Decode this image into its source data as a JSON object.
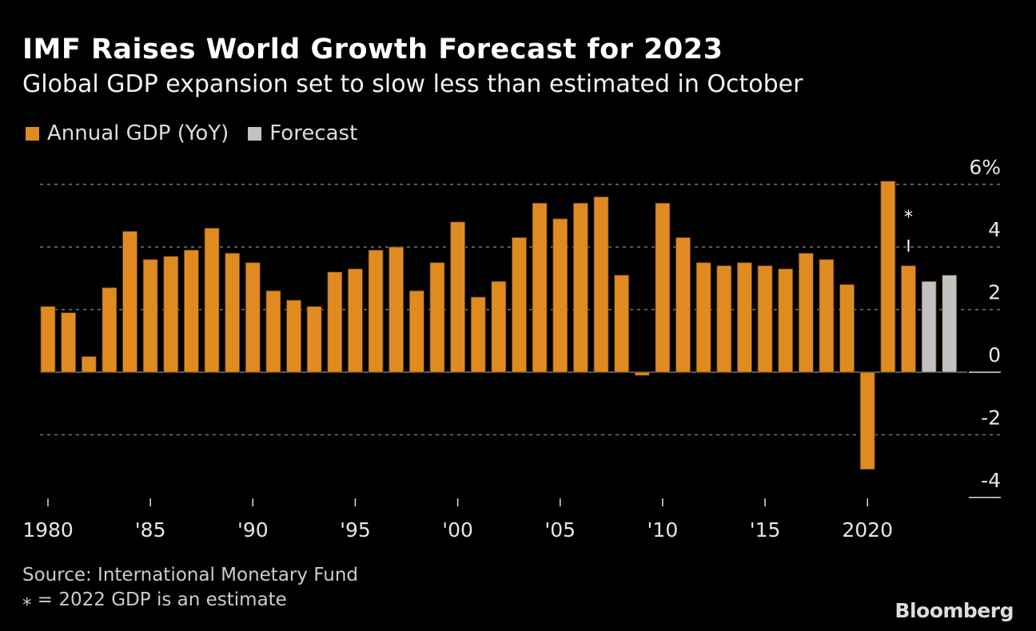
{
  "title": "IMF Raises World Growth Forecast for 2023",
  "subtitle": "Global GDP expansion set to slow less than estimated in October",
  "legend": [
    {
      "label": "Annual GDP (YoY)",
      "color": "#e08b22"
    },
    {
      "label": "Forecast",
      "color": "#c2c2c2"
    }
  ],
  "footer": {
    "source": "Source: International Monetary Fund",
    "note": "⁎ = 2022 GDP is an estimate",
    "brand": "Bloomberg"
  },
  "chart_data": {
    "type": "bar",
    "title": "IMF Raises World Growth Forecast for 2023",
    "xlabel": "",
    "ylabel": "%",
    "ylim": [
      -4,
      6
    ],
    "yticks": [
      6,
      4,
      2,
      0,
      -2,
      -4
    ],
    "ytick_labels": [
      "6%",
      "4",
      "2",
      "0",
      "-2",
      "-4"
    ],
    "xtick_years": [
      1980,
      1985,
      1990,
      1995,
      2000,
      2005,
      2010,
      2015,
      2020
    ],
    "xtick_labels": [
      "1980",
      "'85",
      "'90",
      "'95",
      "'00",
      "'05",
      "'10",
      "'15",
      "2020"
    ],
    "years": [
      1980,
      1981,
      1982,
      1983,
      1984,
      1985,
      1986,
      1987,
      1988,
      1989,
      1990,
      1991,
      1992,
      1993,
      1994,
      1995,
      1996,
      1997,
      1998,
      1999,
      2000,
      2001,
      2002,
      2003,
      2004,
      2005,
      2006,
      2007,
      2008,
      2009,
      2010,
      2011,
      2012,
      2013,
      2014,
      2015,
      2016,
      2017,
      2018,
      2019,
      2020,
      2021,
      2022,
      2023,
      2024
    ],
    "series": [
      {
        "name": "Annual GDP (YoY)",
        "color": "#e08b22",
        "values": [
          2.1,
          1.9,
          0.5,
          2.7,
          4.5,
          3.6,
          3.7,
          3.9,
          4.6,
          3.8,
          3.5,
          2.6,
          2.3,
          2.1,
          3.2,
          3.3,
          3.9,
          4.0,
          2.6,
          3.5,
          4.8,
          2.4,
          2.9,
          4.3,
          5.4,
          4.9,
          5.4,
          5.6,
          3.1,
          -0.1,
          5.4,
          4.3,
          3.5,
          3.4,
          3.5,
          3.4,
          3.3,
          3.8,
          3.6,
          2.8,
          -3.1,
          6.1,
          3.4,
          null,
          null
        ]
      },
      {
        "name": "Forecast",
        "color": "#c2c2c2",
        "values": [
          null,
          null,
          null,
          null,
          null,
          null,
          null,
          null,
          null,
          null,
          null,
          null,
          null,
          null,
          null,
          null,
          null,
          null,
          null,
          null,
          null,
          null,
          null,
          null,
          null,
          null,
          null,
          null,
          null,
          null,
          null,
          null,
          null,
          null,
          null,
          null,
          null,
          null,
          null,
          null,
          null,
          null,
          null,
          2.9,
          3.1
        ]
      }
    ],
    "annotation": {
      "year": 2022,
      "text": "⁎"
    }
  }
}
